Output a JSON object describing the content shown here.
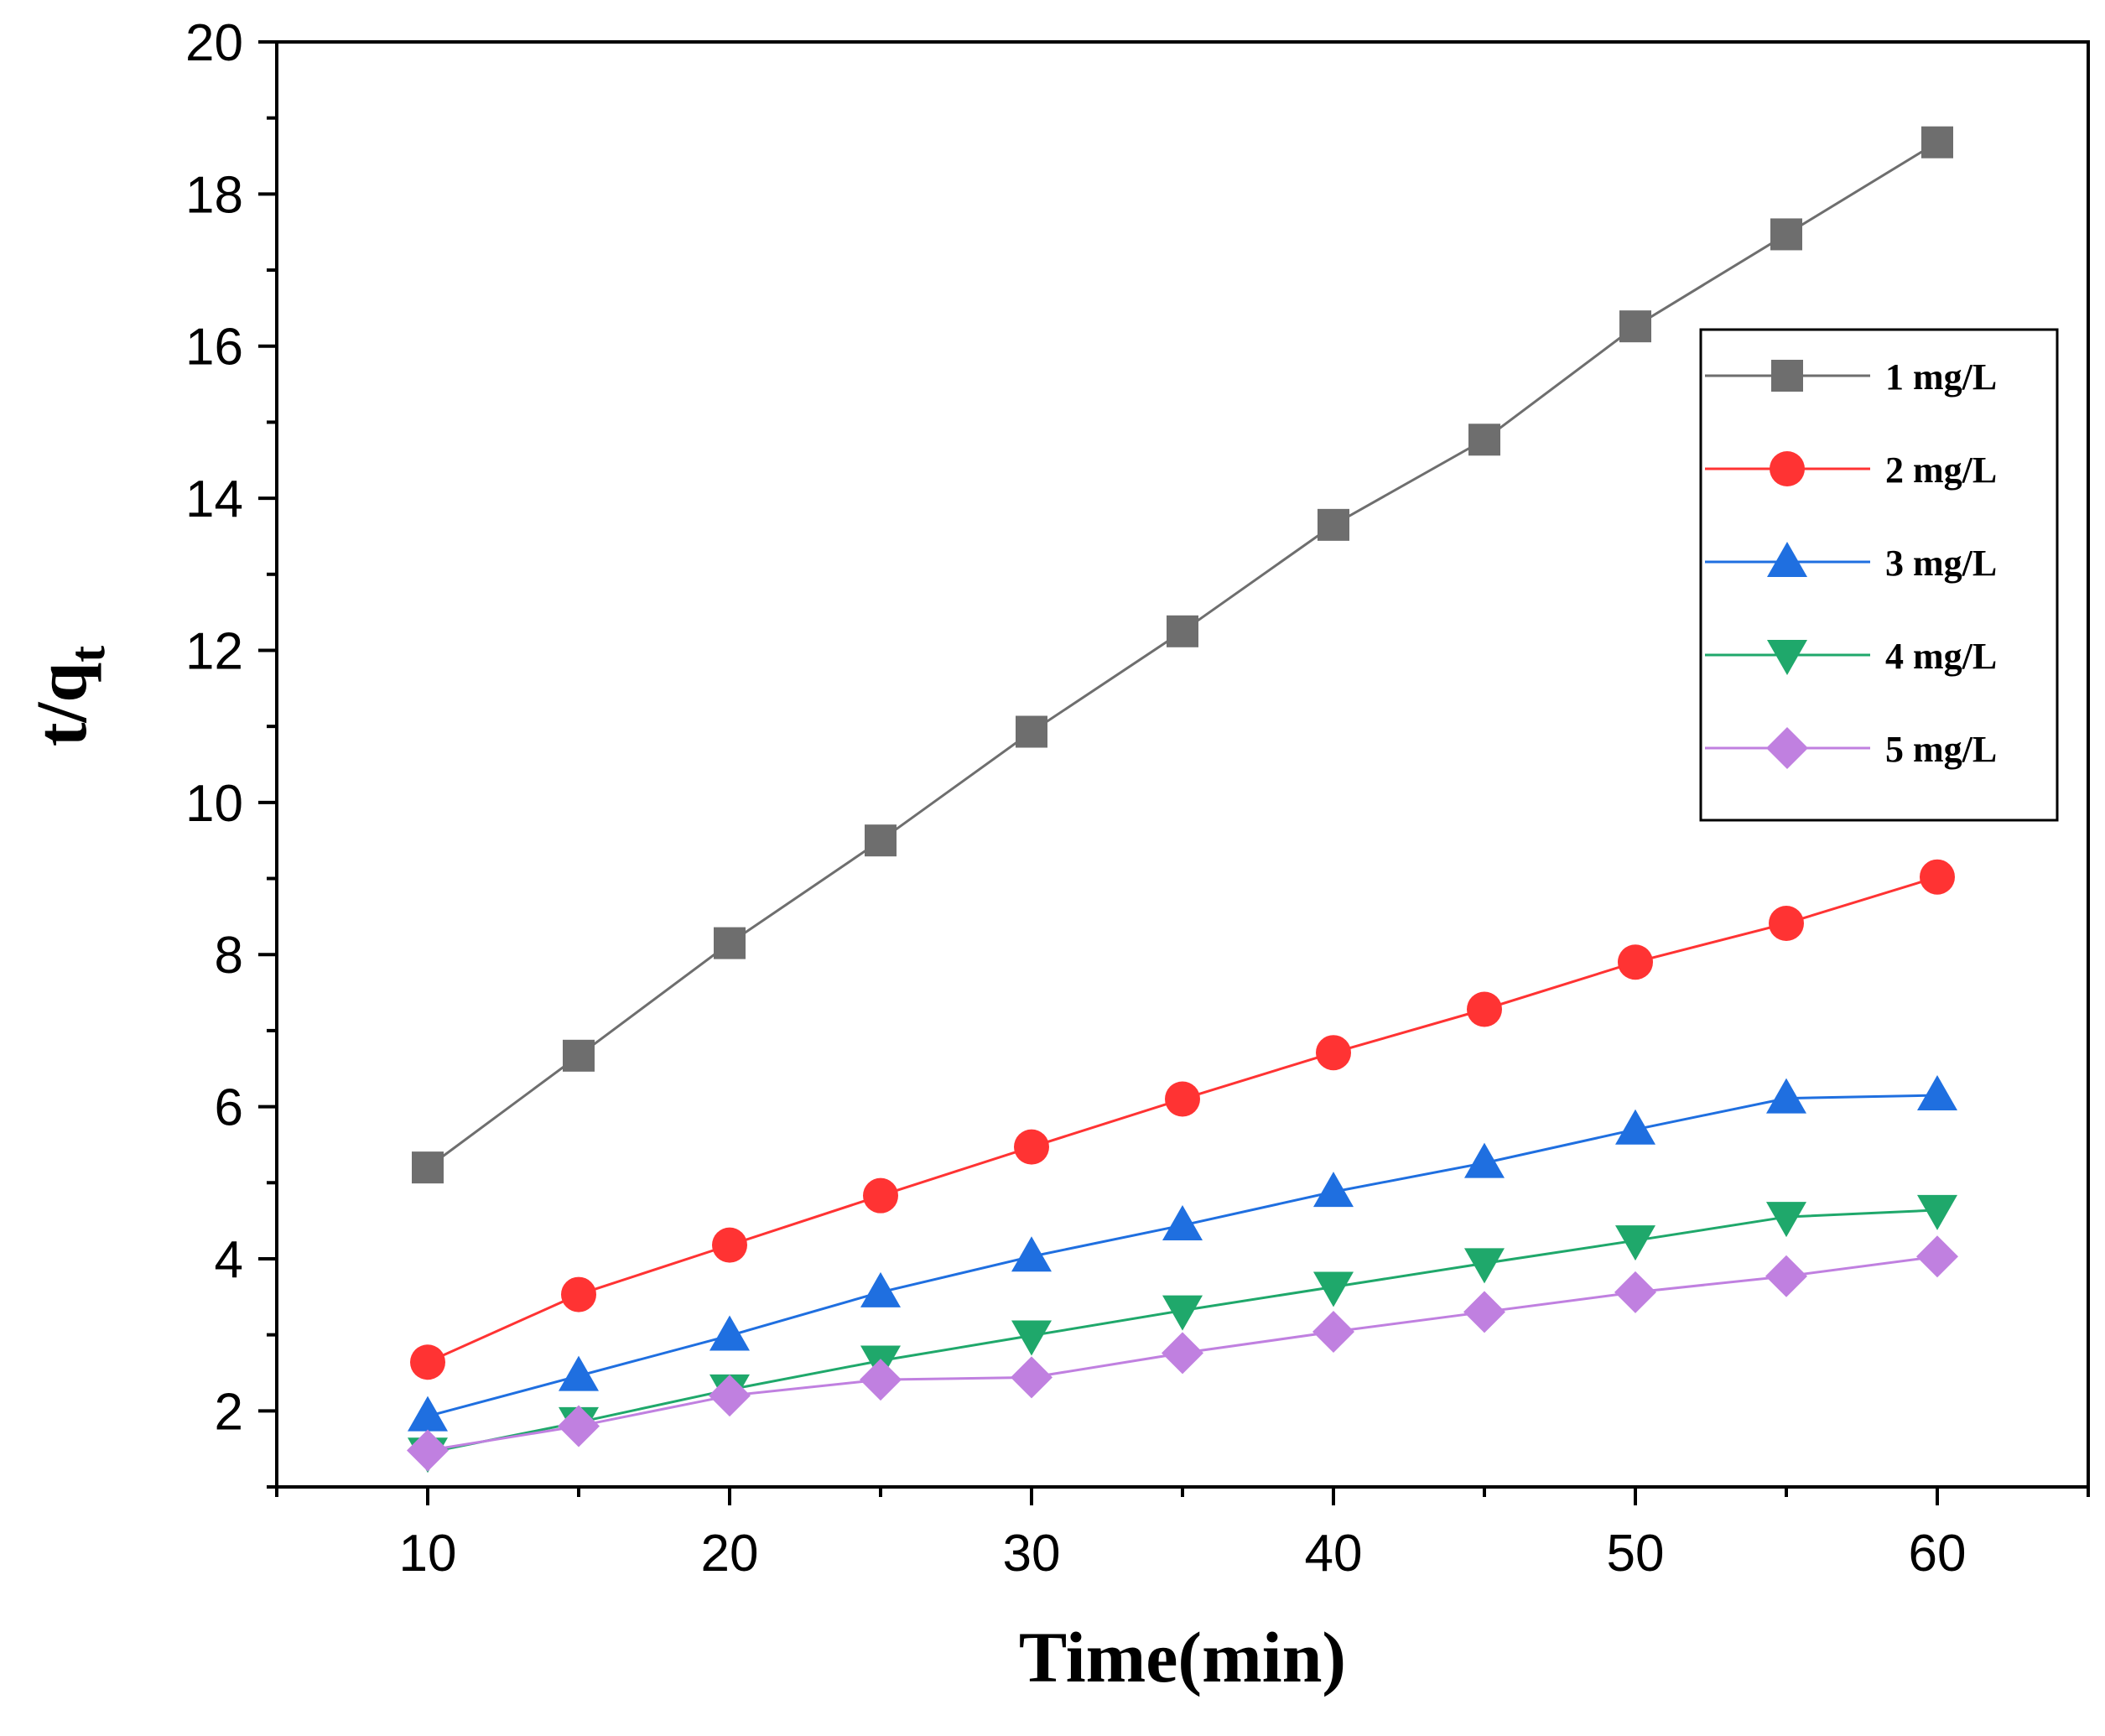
{
  "chart_data": {
    "type": "line",
    "title": "",
    "xlabel": "Time(min)",
    "ylabel_main": "t/q",
    "ylabel_sub": "t",
    "xlim": [
      5,
      65
    ],
    "ylim": [
      1,
      20
    ],
    "x_ticks": [
      10,
      20,
      30,
      40,
      50,
      60
    ],
    "y_ticks": [
      2,
      4,
      6,
      8,
      10,
      12,
      14,
      16,
      18,
      20
    ],
    "grid": false,
    "legend_position": "top-right",
    "x": [
      10,
      15,
      20,
      25,
      30,
      35,
      40,
      45,
      50,
      55,
      60
    ],
    "series": [
      {
        "name": "1 mg/L",
        "color": "#6e6e6e",
        "marker": "square",
        "values": [
          5.2,
          6.67,
          8.15,
          9.5,
          10.93,
          12.25,
          13.65,
          14.77,
          16.26,
          17.47,
          18.68
        ]
      },
      {
        "name": "2 mg/L",
        "color": "#ff3333",
        "marker": "circle",
        "values": [
          2.64,
          3.53,
          4.18,
          4.83,
          5.47,
          6.1,
          6.71,
          7.28,
          7.9,
          8.41,
          9.02
        ]
      },
      {
        "name": "3 mg/L",
        "color": "#1f6fe0",
        "marker": "triangle-up",
        "values": [
          1.93,
          2.46,
          2.99,
          3.56,
          4.03,
          4.44,
          4.88,
          5.26,
          5.7,
          6.11,
          6.15
        ]
      },
      {
        "name": "4 mg/L",
        "color": "#1fa86b",
        "marker": "triangle-down",
        "values": [
          1.45,
          1.85,
          2.28,
          2.66,
          2.99,
          3.32,
          3.63,
          3.94,
          4.24,
          4.55,
          4.64
        ]
      },
      {
        "name": "5 mg/L",
        "color": "#c080e0",
        "marker": "diamond",
        "values": [
          1.48,
          1.8,
          2.2,
          2.41,
          2.44,
          2.76,
          3.04,
          3.3,
          3.56,
          3.77,
          4.03
        ]
      }
    ]
  }
}
